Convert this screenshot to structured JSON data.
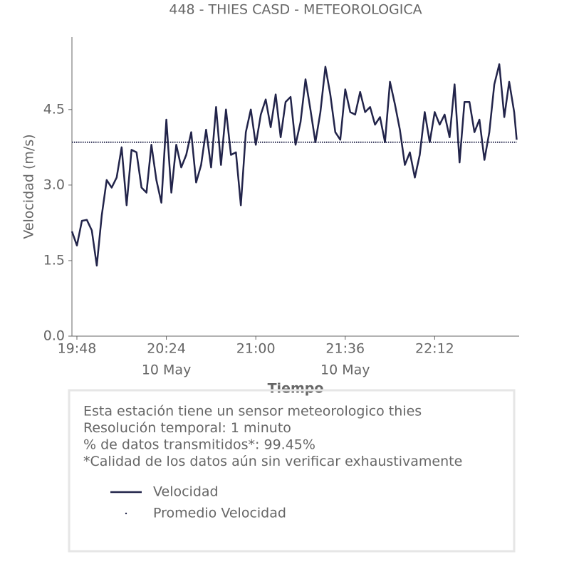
{
  "chart_data": {
    "type": "line",
    "title": "448 - THIES CASD - METEOROLOGICA",
    "xlabel": "Tiempo",
    "ylabel": "Velocidad (m/s)",
    "x": [
      "19:46",
      "19:48",
      "19:50",
      "19:52",
      "19:54",
      "19:56",
      "19:58",
      "20:00",
      "20:02",
      "20:04",
      "20:06",
      "20:08",
      "20:10",
      "20:12",
      "20:14",
      "20:16",
      "20:18",
      "20:20",
      "20:22",
      "20:24",
      "20:26",
      "20:28",
      "20:30",
      "20:32",
      "20:34",
      "20:36",
      "20:38",
      "20:40",
      "20:42",
      "20:44",
      "20:46",
      "20:48",
      "20:50",
      "20:52",
      "20:54",
      "20:56",
      "20:58",
      "21:00",
      "21:02",
      "21:04",
      "21:06",
      "21:08",
      "21:10",
      "21:12",
      "21:14",
      "21:16",
      "21:18",
      "21:20",
      "21:22",
      "21:24",
      "21:26",
      "21:28",
      "21:30",
      "21:32",
      "21:34",
      "21:36",
      "21:38",
      "21:40",
      "21:42",
      "21:44",
      "21:46",
      "21:48",
      "21:50",
      "21:52",
      "21:54",
      "21:56",
      "21:58",
      "22:00",
      "22:02",
      "22:04",
      "22:06",
      "22:08",
      "22:10",
      "22:12",
      "22:14",
      "22:16",
      "22:18",
      "22:20",
      "22:22",
      "22:24",
      "22:26",
      "22:28",
      "22:30",
      "22:32",
      "22:34",
      "22:36",
      "22:38",
      "22:40",
      "22:42",
      "22:44",
      "22:45"
    ],
    "series": [
      {
        "name": "Velocidad",
        "color": "#22244a",
        "style": "solid",
        "values": [
          2.08,
          1.8,
          2.29,
          2.31,
          2.1,
          1.4,
          2.4,
          3.1,
          2.95,
          3.15,
          3.75,
          2.6,
          3.7,
          3.65,
          2.95,
          2.85,
          3.8,
          3.1,
          2.65,
          4.3,
          2.85,
          3.8,
          3.35,
          3.6,
          4.05,
          3.05,
          3.4,
          4.1,
          3.35,
          4.55,
          3.4,
          4.5,
          3.6,
          3.65,
          2.6,
          4.05,
          4.5,
          3.8,
          4.4,
          4.7,
          4.15,
          4.8,
          3.95,
          4.65,
          4.75,
          3.8,
          4.25,
          5.1,
          4.5,
          3.85,
          4.45,
          5.35,
          4.8,
          4.05,
          3.9,
          4.9,
          4.45,
          4.4,
          4.85,
          4.45,
          4.55,
          4.2,
          4.35,
          3.85,
          5.05,
          4.6,
          4.1,
          3.4,
          3.65,
          3.15,
          3.6,
          4.45,
          3.85,
          4.45,
          4.2,
          4.4,
          3.95,
          5.0,
          3.45,
          4.65,
          4.65,
          4.05,
          4.3,
          3.5,
          4.05,
          5.0,
          5.4,
          4.35,
          5.05,
          4.45,
          3.9
        ]
      },
      {
        "name": "Promedio Velocidad",
        "color": "#22244a",
        "style": "dotted",
        "x": [
          "19:46",
          "22:45"
        ],
        "values": [
          3.85,
          3.85
        ]
      }
    ],
    "xlim": [
      "19:46",
      "22:46"
    ],
    "xticks": [
      {
        "value": "19:48",
        "label": [
          "19:48"
        ]
      },
      {
        "value": "20:24",
        "label": [
          "20:24",
          "10 May"
        ]
      },
      {
        "value": "21:00",
        "label": [
          "21:00"
        ]
      },
      {
        "value": "21:36",
        "label": [
          "21:36",
          "10 May"
        ]
      },
      {
        "value": "22:12",
        "label": [
          "22:12"
        ]
      }
    ],
    "ylim": [
      0,
      5.94
    ],
    "yticks": [
      {
        "value": 0,
        "label": "0.0"
      },
      1.5,
      {
        "value": 3,
        "label": "3.0"
      },
      4.5
    ],
    "info": [
      "Esta estación tiene un sensor meteorologico thies",
      "Resolución temporal: 1 minuto",
      "% de datos transmitidos*: 99.45%",
      "*Calidad de los datos aún sin verificar exhaustivamente"
    ]
  }
}
